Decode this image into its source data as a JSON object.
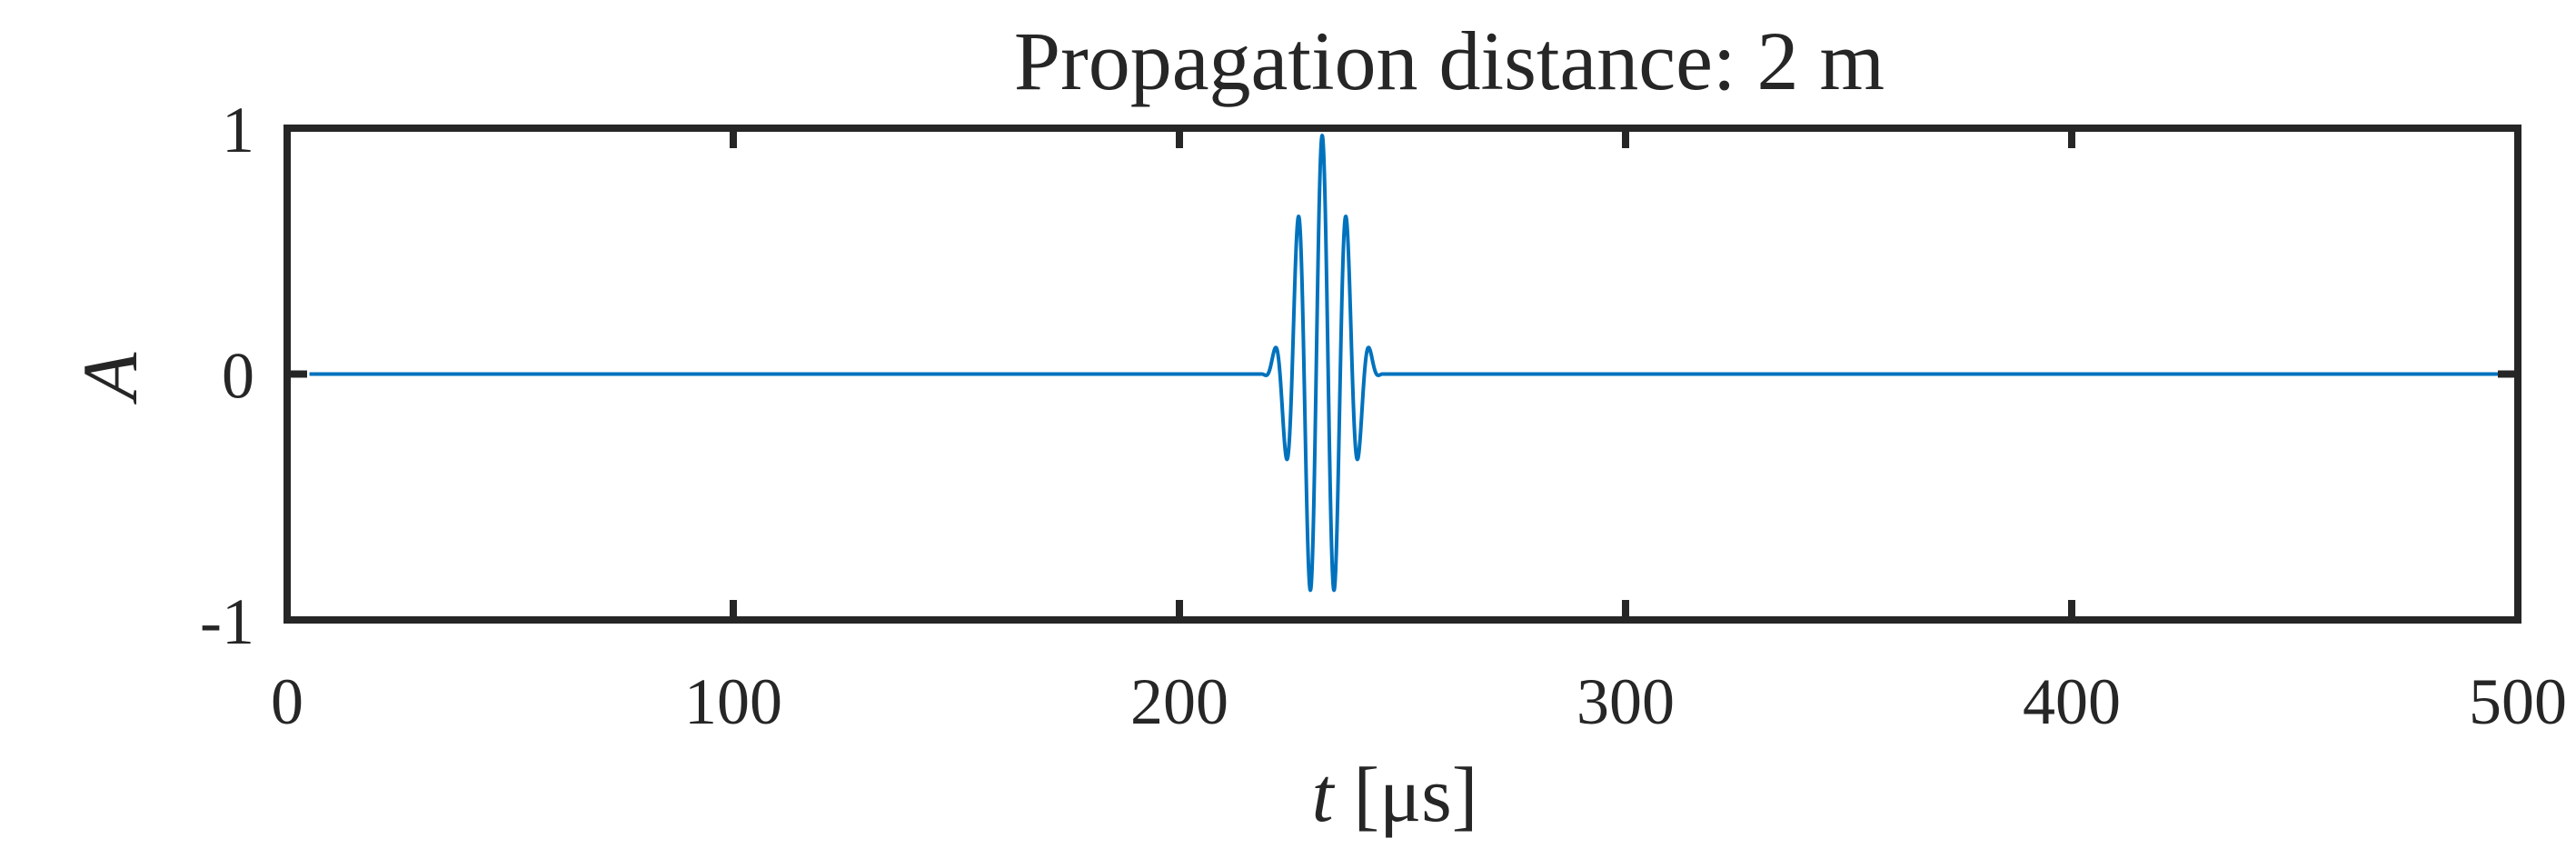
{
  "chart_data": {
    "type": "line",
    "title": "Propagation distance: 2 m",
    "xlabel": {
      "var": "t",
      "unit": "[μs]"
    },
    "ylabel": "A",
    "xlim": [
      0,
      500
    ],
    "ylim": [
      -1,
      1
    ],
    "xticks": [
      0,
      100,
      200,
      300,
      400,
      500
    ],
    "xticklabels": [
      "0",
      "100",
      "200",
      "300",
      "400",
      "500"
    ],
    "yticks": [
      1,
      0,
      -1
    ],
    "yticklabels": [
      "1",
      "0",
      "-1"
    ],
    "grid": false,
    "series": [
      {
        "color": "#0072BD",
        "signal": {
          "kind": "tone-burst",
          "t_start": 5,
          "t_end": 500,
          "center": 232,
          "cycles": 5,
          "frequency_mhz": 0.185,
          "peak": 0.97
        }
      }
    ]
  }
}
